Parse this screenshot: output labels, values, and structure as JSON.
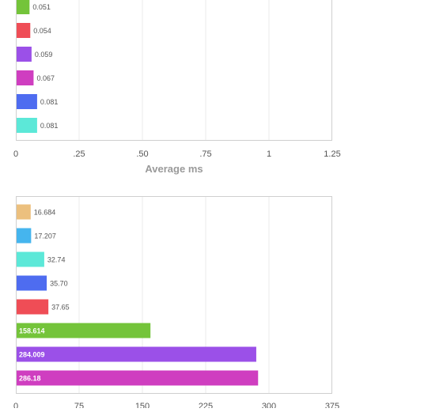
{
  "chart_data": [
    {
      "type": "bar",
      "orientation": "horizontal",
      "xlabel": "Average ms",
      "xlim": [
        0,
        1.25
      ],
      "ticks": [
        0,
        0.25,
        0.5,
        0.75,
        1,
        1.25
      ],
      "tick_labels": [
        "0",
        ".25",
        ".50",
        ".75",
        "1",
        "1.25"
      ],
      "grid": true,
      "bars": [
        {
          "value": 0.051,
          "label": "0.051",
          "color": "#74c43a"
        },
        {
          "value": 0.054,
          "label": "0.054",
          "color": "#ef4d56"
        },
        {
          "value": 0.059,
          "label": "0.059",
          "color": "#9b50e8"
        },
        {
          "value": 0.067,
          "label": "0.067",
          "color": "#cf3ec0"
        },
        {
          "value": 0.081,
          "label": "0.081",
          "color": "#4e6cf0"
        },
        {
          "value": 0.081,
          "label": "0.081",
          "color": "#5ce8d8"
        }
      ]
    },
    {
      "type": "bar",
      "orientation": "horizontal",
      "xlim": [
        0,
        375
      ],
      "ticks": [
        0,
        75,
        150,
        225,
        300,
        375
      ],
      "tick_labels": [
        "0",
        "75",
        "150",
        "225",
        "300",
        "375"
      ],
      "grid": true,
      "bars": [
        {
          "value": 16.684,
          "label": "16.684",
          "color": "#ecc07e"
        },
        {
          "value": 17.207,
          "label": "17.207",
          "color": "#45b5ee"
        },
        {
          "value": 32.74,
          "label": "32.74",
          "color": "#5ce8d8"
        },
        {
          "value": 35.7,
          "label": "35.70",
          "color": "#4e6cf0"
        },
        {
          "value": 37.65,
          "label": "37.65",
          "color": "#ef4d56"
        },
        {
          "value": 158.614,
          "label": "158.614",
          "color": "#74c43a"
        },
        {
          "value": 284.009,
          "label": "284.009",
          "color": "#9b50e8"
        },
        {
          "value": 286.18,
          "label": "286.18",
          "color": "#cf3ec0"
        }
      ]
    }
  ]
}
